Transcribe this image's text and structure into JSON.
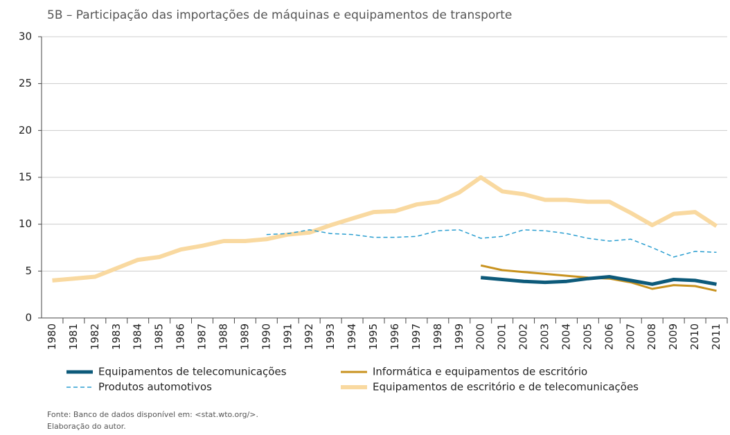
{
  "chart_data": {
    "type": "line",
    "title": "5B – Participação das importações de máquinas e equipamentos de transporte",
    "categories": [
      "1980",
      "1981",
      "1982",
      "1983",
      "1984",
      "1985",
      "1986",
      "1987",
      "1988",
      "1989",
      "1990",
      "1991",
      "1992",
      "1993",
      "1994",
      "1995",
      "1996",
      "1997",
      "1998",
      "1999",
      "2000",
      "2001",
      "2002",
      "2003",
      "2004",
      "2005",
      "2006",
      "2007",
      "2008",
      "2009",
      "2010",
      "2011"
    ],
    "series": [
      {
        "name": "Equipamentos de telecomunicações",
        "color": "#0d5a7a",
        "values": [
          null,
          null,
          null,
          null,
          null,
          null,
          null,
          null,
          null,
          null,
          null,
          null,
          null,
          null,
          null,
          null,
          null,
          null,
          null,
          null,
          4.3,
          4.1,
          3.9,
          3.8,
          3.9,
          4.2,
          4.4,
          4.0,
          3.6,
          4.1,
          4.0,
          3.6
        ]
      },
      {
        "name": "Informática e equipamentos de escritório",
        "color": "#c8921e",
        "values": [
          null,
          null,
          null,
          null,
          null,
          null,
          null,
          null,
          null,
          null,
          null,
          null,
          null,
          null,
          null,
          null,
          null,
          null,
          null,
          null,
          5.6,
          5.1,
          4.9,
          4.7,
          4.5,
          4.3,
          4.2,
          3.8,
          3.1,
          3.5,
          3.4,
          2.9
        ]
      },
      {
        "name": "Produtos automotivos",
        "color": "#2a9ed0",
        "dashed": true,
        "values": [
          null,
          null,
          null,
          null,
          null,
          null,
          null,
          null,
          null,
          null,
          8.9,
          9.0,
          9.4,
          9.0,
          8.9,
          8.6,
          8.6,
          8.7,
          9.3,
          9.4,
          8.5,
          8.7,
          9.4,
          9.3,
          9.0,
          8.5,
          8.2,
          8.4,
          7.5,
          6.5,
          7.1,
          7.0
        ]
      },
      {
        "name": "Equipamentos de escritório e de telecomunicações",
        "color": "#f9d9a0",
        "values": [
          4.0,
          4.2,
          4.4,
          5.3,
          6.2,
          6.5,
          7.3,
          7.7,
          8.2,
          8.2,
          8.4,
          8.9,
          9.1,
          9.9,
          10.6,
          11.3,
          11.4,
          12.1,
          12.4,
          13.4,
          15.0,
          13.5,
          13.2,
          12.6,
          12.6,
          12.4,
          12.4,
          11.2,
          9.9,
          11.1,
          11.3,
          9.8
        ]
      }
    ],
    "ylim": [
      0,
      30
    ],
    "yticks": [
      0,
      5,
      10,
      15,
      20,
      25,
      30
    ],
    "grid": true,
    "notes": [
      "Fonte: Banco de dados disponível em: <stat.wto.org/>.",
      "Elaboração do autor."
    ]
  }
}
